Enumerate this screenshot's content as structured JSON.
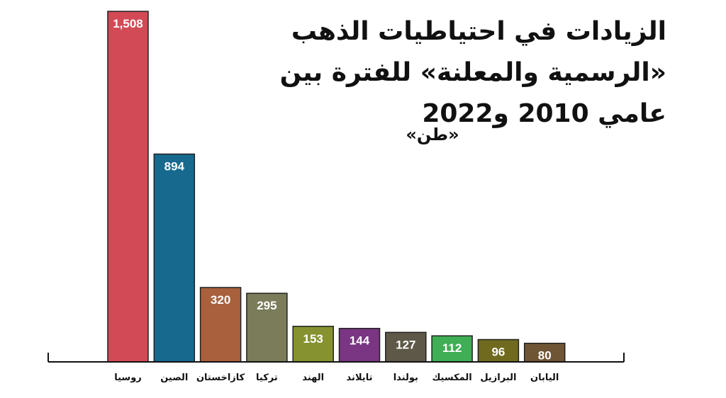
{
  "chart_data": {
    "type": "bar",
    "title": "الزيادات في احتياطيات الذهب «الرسمية والمعلنة» للفترة بين عامي 2010 و2022",
    "subtitle": "«طن»",
    "categories": [
      "روسيا",
      "الصين",
      "كازاخستان",
      "تركيا",
      "الهند",
      "تايلاند",
      "بولندا",
      "المكسيك",
      "البرازيل",
      "اليابان"
    ],
    "values": [
      1508,
      894,
      320,
      295,
      153,
      144,
      127,
      112,
      96,
      80
    ],
    "value_labels": [
      "1,508",
      "894",
      "320",
      "295",
      "153",
      "144",
      "127",
      "112",
      "96",
      "80"
    ],
    "colors": [
      "#d24a55",
      "#17698e",
      "#a8613c",
      "#7a7c5a",
      "#86922f",
      "#7a3583",
      "#5e5848",
      "#3fae55",
      "#6f6a1e",
      "#705535"
    ],
    "ylim": [
      0,
      1508
    ],
    "grid": false,
    "legend": "none"
  }
}
